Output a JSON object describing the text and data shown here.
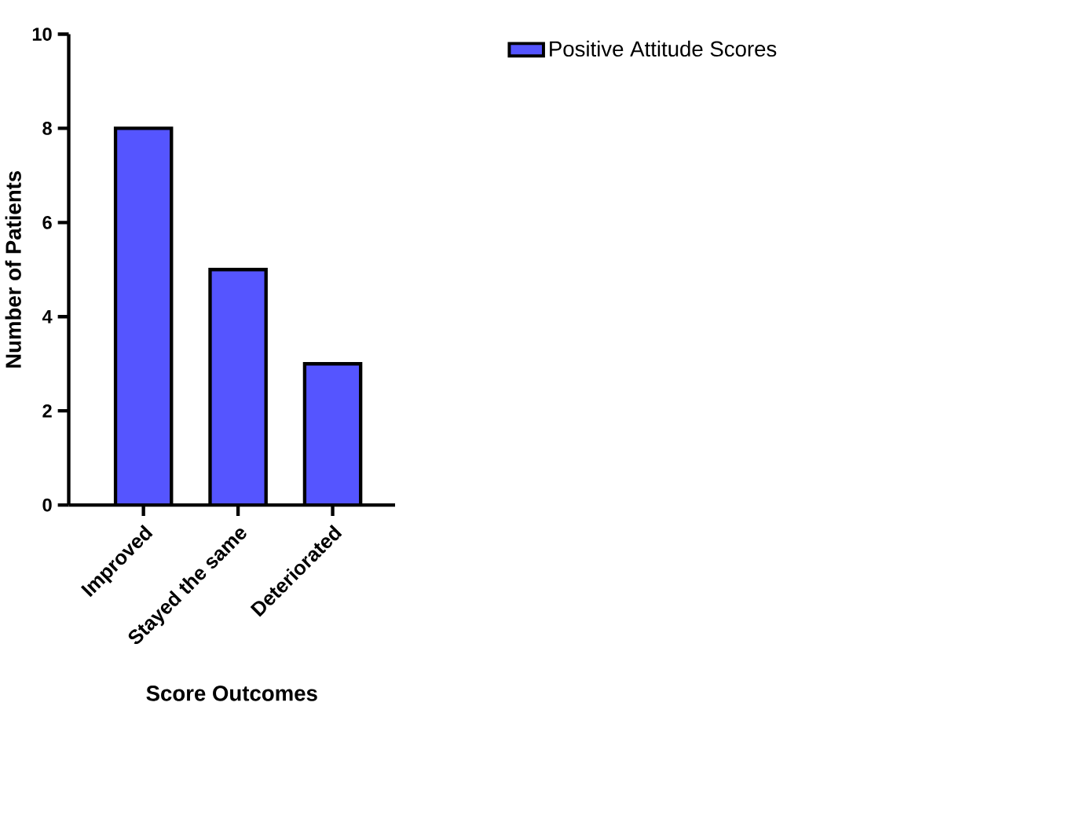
{
  "chart_data": {
    "type": "bar",
    "xlabel": "Score Outcomes",
    "ylabel": "Number of Patients",
    "categories": [
      "Improved",
      "Stayed the same",
      "Deteriorated"
    ],
    "series": [
      {
        "name": "Positive Attitude Scores",
        "color": "#5555ff",
        "values": [
          8,
          5,
          3
        ]
      }
    ],
    "ylim": [
      0,
      10
    ],
    "yticks": [
      0,
      2,
      4,
      6,
      8,
      10
    ],
    "legend": "top right",
    "grid": false
  }
}
